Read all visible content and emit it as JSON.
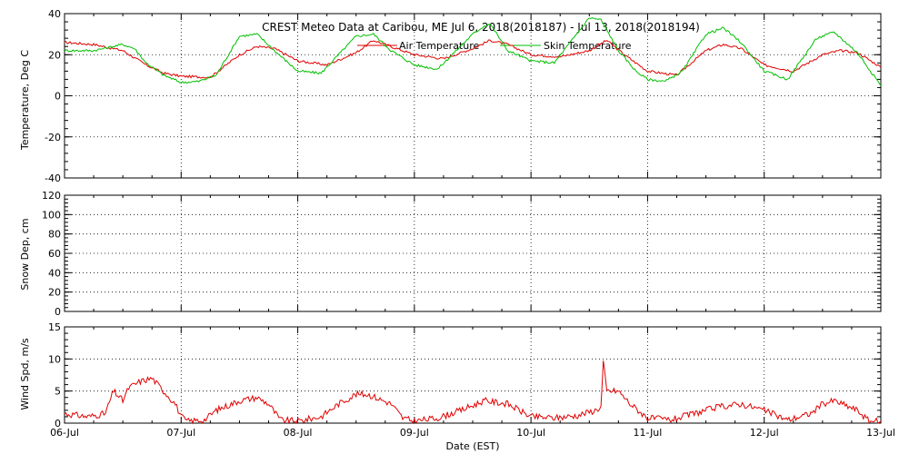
{
  "chart_data": {
    "type": "line",
    "title": "CREST Meteo Data at Caribou, ME   Jul  6, 2018(2018187) - Jul 13, 2018(2018194)",
    "xlabel": "Date (EST)",
    "x_tick_labels": [
      "06-Jul",
      "07-Jul",
      "08-Jul",
      "09-Jul",
      "10-Jul",
      "11-Jul",
      "12-Jul",
      "13-Jul"
    ],
    "xlim": [
      "2018-07-06",
      "2018-07-13"
    ],
    "grid": true,
    "panels": [
      {
        "ylabel": "Temperature, Deg C",
        "ylim": [
          -40,
          40
        ],
        "y_ticks": [
          -40,
          -20,
          0,
          20,
          40
        ],
        "legend_position": "top-center",
        "series": [
          {
            "name": "Air Temperature",
            "color": "#e00000",
            "x_days": [
              0,
              0.25,
              0.5,
              0.7,
              0.85,
              1.0,
              1.25,
              1.5,
              1.65,
              1.8,
              2.0,
              2.25,
              2.5,
              2.65,
              2.8,
              3.0,
              3.25,
              3.5,
              3.65,
              3.8,
              4.0,
              4.25,
              4.5,
              4.65,
              4.8,
              5.0,
              5.25,
              5.5,
              5.65,
              5.8,
              6.0,
              6.25,
              6.5,
              6.65,
              6.8,
              7.0
            ],
            "values": [
              26,
              25,
              22,
              15,
              11,
              9.5,
              9,
              20,
              24,
              23,
              17,
              15,
              21,
              27,
              24,
              20,
              18,
              23,
              27,
              25,
              20,
              19,
              22,
              27,
              20,
              12,
              10,
              22,
              25,
              23,
              15,
              12,
              20,
              22,
              21,
              14
            ]
          },
          {
            "name": "Skin Temperature",
            "color": "#00c000",
            "x_days": [
              0,
              0.25,
              0.5,
              0.6,
              0.7,
              0.85,
              1.0,
              1.15,
              1.3,
              1.5,
              1.65,
              1.8,
              2.0,
              2.2,
              2.5,
              2.65,
              2.8,
              3.0,
              3.2,
              3.5,
              3.6,
              3.65,
              3.8,
              4.0,
              4.2,
              4.5,
              4.6,
              4.75,
              4.9,
              5.0,
              5.15,
              5.3,
              5.5,
              5.65,
              5.8,
              6.0,
              6.2,
              6.45,
              6.6,
              6.8,
              7.0
            ],
            "values": [
              22,
              22,
              25,
              23,
              16,
              10,
              6.5,
              7,
              10,
              29,
              30,
              22,
              12,
              11,
              29,
              30,
              22,
              15,
              13,
              30,
              34,
              35,
              22,
              17,
              16,
              38,
              37,
              22,
              12,
              8,
              7,
              12,
              30,
              33,
              26,
              12,
              8,
              28,
              31,
              21,
              5
            ]
          }
        ]
      },
      {
        "ylabel": "Snow Dep, cm",
        "ylim": [
          0,
          120
        ],
        "y_ticks": [
          0,
          20,
          40,
          60,
          80,
          100,
          120
        ],
        "series": []
      },
      {
        "ylabel": "Wind Spd, m/s",
        "ylim": [
          0,
          15
        ],
        "y_ticks": [
          0,
          5,
          10,
          15
        ],
        "series": [
          {
            "name": "Wind Speed",
            "color": "#e00000",
            "x_days": [
              0,
              0.2,
              0.35,
              0.42,
              0.5,
              0.55,
              0.65,
              0.75,
              0.85,
              0.95,
              1.0,
              1.05,
              1.2,
              1.3,
              1.5,
              1.65,
              1.75,
              1.85,
              2.0,
              2.2,
              2.35,
              2.5,
              2.6,
              2.8,
              2.9,
              3.0,
              3.2,
              3.4,
              3.6,
              3.8,
              4.0,
              4.2,
              4.4,
              4.55,
              4.6,
              4.62,
              4.65,
              4.75,
              4.85,
              5.0,
              5.2,
              5.4,
              5.6,
              5.8,
              6.0,
              6.2,
              6.4,
              6.5,
              6.6,
              6.8,
              6.9,
              7.0
            ],
            "values": [
              1.5,
              1.0,
              1.5,
              5.0,
              3.5,
              5.5,
              6.5,
              7.0,
              5.0,
              3.0,
              1.0,
              0.3,
              0.5,
              2.0,
              3.5,
              4.0,
              3.0,
              0.5,
              0.3,
              1.0,
              3.0,
              4.5,
              4.5,
              3.0,
              0.8,
              0.3,
              0.8,
              2.0,
              3.5,
              3.0,
              1.0,
              0.8,
              1.2,
              2.0,
              2.5,
              9.5,
              5.0,
              5.0,
              3.0,
              0.8,
              0.5,
              1.5,
              2.5,
              3.0,
              2.0,
              0.5,
              1.5,
              3.0,
              3.5,
              2.0,
              0.3,
              0.3
            ]
          }
        ]
      }
    ]
  },
  "legend": {
    "air_label": "Air Temperature",
    "skin_label": "Skin Temperature",
    "air_color": "#e00000",
    "skin_color": "#00c000"
  }
}
